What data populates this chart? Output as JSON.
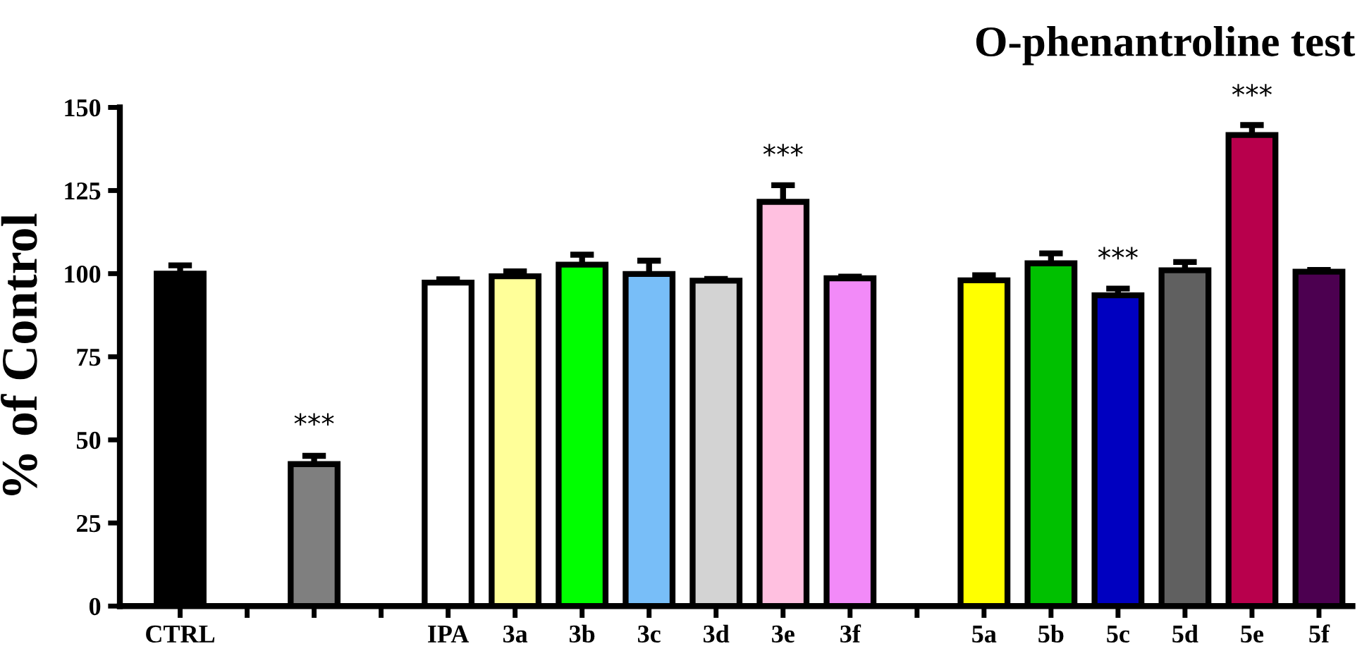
{
  "chart_data": {
    "type": "bar",
    "title": "O-phenantroline test",
    "ylabel": "% of Control",
    "categories": [
      "CTRL",
      null,
      null,
      null,
      "IPA",
      "3a",
      "3b",
      "3c",
      "3d",
      "3e",
      "3f",
      null,
      "5a",
      "5b",
      "5c",
      "5d",
      "5e",
      "5f"
    ],
    "values": [
      100,
      null,
      42.7,
      null,
      97.3,
      99.2,
      102.7,
      99.9,
      97.9,
      121.6,
      98.6,
      null,
      98,
      103.1,
      93.5,
      101,
      141.7,
      100.6
    ],
    "errors": [
      2.5,
      null,
      2.5,
      null,
      1,
      1.5,
      3,
      4,
      0.5,
      5,
      0.5,
      null,
      1.5,
      3,
      2,
      2.5,
      3,
      0.5
    ],
    "colors": [
      "#000000",
      null,
      "#7f7f7f",
      null,
      "#ffffff",
      "#ffff99",
      "#00ff00",
      "#78bef8",
      "#d3d3d3",
      "#ffc0e0",
      "#f28af8",
      null,
      "#ffff00",
      "#00c000",
      "#0000c0",
      "#606060",
      "#b8004c",
      "#4c0050"
    ],
    "annotations": [
      {
        "text": "***",
        "y": 45.5
      },
      {
        "text": "***",
        "x": "3e",
        "y": 126.5
      },
      {
        "text": "***",
        "x": "5c",
        "y": 95.5
      },
      {
        "text": "***",
        "x": "5e",
        "y": 144.5
      }
    ],
    "ylim": [
      0,
      150
    ],
    "yticks": [
      0,
      25,
      50,
      75,
      100,
      125,
      150
    ],
    "grid": false,
    "legend": false
  }
}
